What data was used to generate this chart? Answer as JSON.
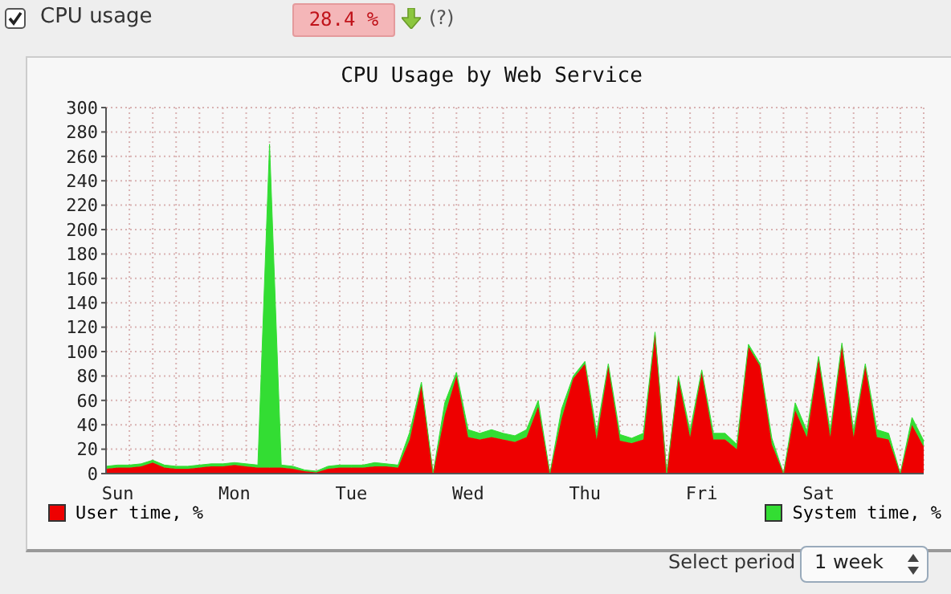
{
  "chart_data": {
    "type": "area",
    "title": "CPU Usage by Web Service",
    "stacked": true,
    "legend": "bottom",
    "grid": true,
    "marker": "none",
    "annotations": [
      "CPU usage",
      "28.4 %",
      "(?)",
      "Select period",
      "1 week"
    ],
    "categories": [
      null,
      "Sun",
      null,
      null,
      null,
      null,
      null,
      null,
      null,
      null,
      null,
      "Mon",
      null,
      null,
      null,
      null,
      null,
      null,
      null,
      null,
      null,
      "Tue",
      null,
      null,
      null,
      null,
      null,
      null,
      null,
      null,
      null,
      "Wed",
      null,
      null,
      null,
      null,
      null,
      null,
      null,
      null,
      null,
      "Thu",
      null,
      null,
      null,
      null,
      null,
      null,
      null,
      null,
      null,
      "Fri",
      null,
      null,
      null,
      null,
      null,
      null,
      null,
      null,
      null,
      "Sat",
      null,
      null,
      null,
      null,
      null,
      null,
      null,
      null,
      null
    ],
    "series": [
      {
        "name": "User time, %",
        "color": "#ee0000",
        "values": [
          4,
          5,
          5,
          6,
          9,
          5,
          4,
          4,
          5,
          6,
          6,
          7,
          6,
          5,
          5,
          5,
          4,
          2,
          1,
          4,
          5,
          5,
          5,
          6,
          6,
          5,
          28,
          72,
          0,
          48,
          80,
          30,
          28,
          30,
          28,
          26,
          30,
          55,
          0,
          45,
          78,
          90,
          28,
          88,
          27,
          25,
          28,
          114,
          0,
          78,
          30,
          83,
          28,
          28,
          20,
          104,
          88,
          24,
          0,
          52,
          30,
          94,
          30,
          105,
          30,
          88,
          30,
          28,
          0,
          40,
          22
        ]
      },
      {
        "name": "System time, %",
        "color": "#33dd33",
        "values": [
          2,
          2,
          2,
          2,
          2,
          2,
          2,
          2,
          2,
          2,
          2,
          2,
          2,
          2,
          265,
          2,
          2,
          1,
          1,
          2,
          2,
          2,
          2,
          3,
          2,
          2,
          6,
          3,
          0,
          10,
          3,
          6,
          5,
          6,
          5,
          5,
          6,
          5,
          0,
          8,
          2,
          2,
          6,
          2,
          5,
          4,
          5,
          2,
          0,
          2,
          5,
          2,
          5,
          5,
          4,
          2,
          2,
          5,
          0,
          6,
          5,
          2,
          5,
          2,
          5,
          2,
          6,
          5,
          0,
          6,
          5
        ]
      }
    ],
    "ylim": [
      0,
      300
    ],
    "yticks": [
      0,
      20,
      40,
      60,
      80,
      100,
      120,
      140,
      160,
      180,
      200,
      220,
      240,
      260,
      280,
      300
    ]
  }
}
